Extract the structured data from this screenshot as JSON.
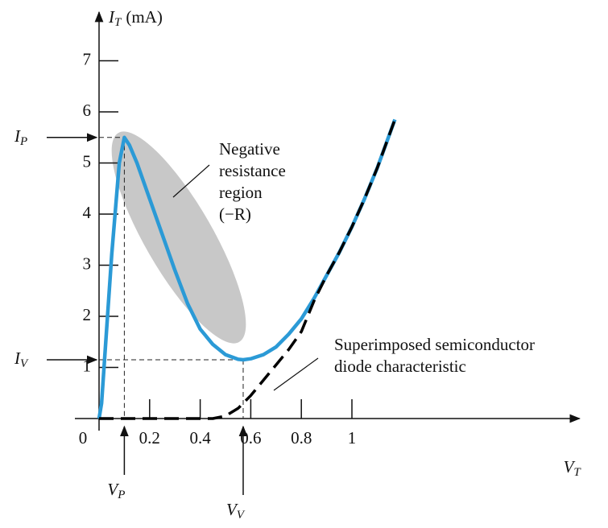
{
  "chart_data": {
    "type": "line",
    "y_label": {
      "text": "I",
      "sub": "T",
      "unit": "(mA)"
    },
    "x_label": {
      "text": "V",
      "sub": "T"
    },
    "xlim": [
      0,
      1.9
    ],
    "ylim": [
      0,
      7.95
    ],
    "xticks": [
      0,
      0.2,
      0.4,
      0.6,
      0.8,
      1
    ],
    "yticks": [
      1,
      2,
      3,
      4,
      5,
      6,
      7
    ],
    "peak": {
      "x": 0.1,
      "y": 5.5
    },
    "valley": {
      "x": 0.57,
      "y": 1.15
    },
    "peak_current_label": {
      "text": "I",
      "sub": "P"
    },
    "peak_voltage_label": {
      "text": "V",
      "sub": "P"
    },
    "valley_current_label": {
      "text": "I",
      "sub": "V"
    },
    "valley_voltage_label": {
      "text": "V",
      "sub": "V"
    },
    "annotations": [
      {
        "lines": [
          "Negative",
          "resistance",
          "region",
          "(−R)"
        ]
      },
      {
        "lines": [
          "Superimposed semiconductor",
          "diode characteristic"
        ]
      }
    ],
    "series": [
      {
        "color": "#2b9ad6",
        "style": "solid",
        "x": [
          0,
          0.01,
          0.05,
          0.08,
          0.1,
          0.12,
          0.15,
          0.2,
          0.25,
          0.3,
          0.35,
          0.4,
          0.45,
          0.5,
          0.55,
          0.57,
          0.6,
          0.65,
          0.7,
          0.75,
          0.8,
          0.85,
          0.9,
          0.95,
          1.0,
          1.05,
          1.1,
          1.17
        ],
        "values": [
          0,
          0.3,
          3.2,
          5.0,
          5.5,
          5.35,
          5.0,
          4.3,
          3.6,
          2.9,
          2.25,
          1.75,
          1.45,
          1.25,
          1.16,
          1.15,
          1.17,
          1.25,
          1.4,
          1.65,
          1.95,
          2.35,
          2.8,
          3.25,
          3.75,
          4.3,
          4.9,
          5.85
        ]
      },
      {
        "color": "#000000",
        "style": "dashed",
        "x": [
          0,
          0.45,
          0.5,
          0.55,
          0.6,
          0.65,
          0.7,
          0.75,
          0.8,
          0.85,
          0.9,
          0.95,
          1.0,
          1.05,
          1.1,
          1.17
        ],
        "values": [
          0,
          0,
          0.05,
          0.2,
          0.45,
          0.75,
          1.05,
          1.35,
          1.7,
          2.3,
          2.8,
          3.25,
          3.75,
          4.3,
          4.9,
          5.85
        ]
      }
    ]
  }
}
